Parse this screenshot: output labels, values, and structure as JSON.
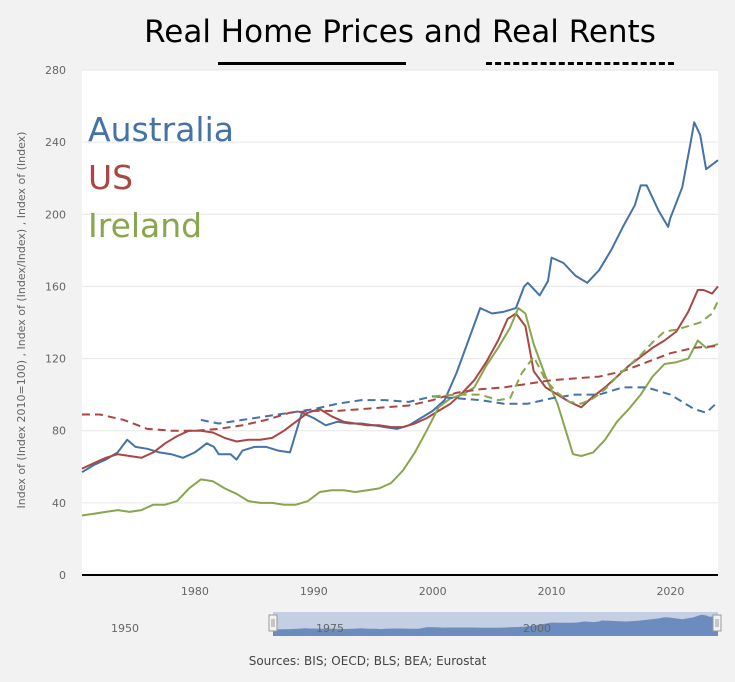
{
  "chart_data": {
    "type": "line",
    "title": "Real Home Prices and Real Rents",
    "legend": {
      "style": "line-samples-under-title",
      "solid_meaning": "Home Prices",
      "dashed_meaning": "Rents"
    },
    "ylabel": "Index of (Index 2010=100) , Index of (Index/Index) , Index of (Index)",
    "xlabel": "",
    "xlim": [
      1970.5,
      2024
    ],
    "ylim": [
      0,
      280
    ],
    "y_ticks": [
      0,
      40,
      80,
      120,
      160,
      200,
      240,
      280
    ],
    "x_ticks": [
      1980,
      1990,
      2000,
      2010,
      2020
    ],
    "grid": true,
    "country_labels": [
      {
        "name": "Australia",
        "color": "#4572a7"
      },
      {
        "name": "US",
        "color": "#aa4643"
      },
      {
        "name": "Ireland",
        "color": "#89a54e"
      }
    ],
    "series": [
      {
        "name": "Australia",
        "kind": "home prices",
        "color": "#4572a7",
        "dashed": false,
        "x": [
          1970.5,
          1971.5,
          1972.5,
          1973.5,
          1974.3,
          1975,
          1976,
          1977,
          1978,
          1979,
          1980,
          1981,
          1981.6,
          1982,
          1983,
          1983.5,
          1984,
          1985,
          1986,
          1987,
          1988,
          1989,
          1990,
          1991,
          1992,
          1993,
          1994,
          1995,
          1996,
          1997,
          1998,
          1999,
          2000,
          2001,
          2002,
          2003,
          2004,
          2005,
          2006,
          2007,
          2007.7,
          2008,
          2009,
          2009.7,
          2010,
          2011,
          2012,
          2013,
          2014,
          2015,
          2016,
          2017,
          2017.5,
          2018,
          2019,
          2019.8,
          2020,
          2021,
          2021.7,
          2022,
          2022.5,
          2023,
          2024
        ],
        "y": [
          57,
          61,
          64,
          68,
          75,
          71,
          70,
          68,
          67,
          65,
          68,
          73,
          71,
          67,
          67,
          64,
          69,
          71,
          71,
          69,
          68,
          90,
          87,
          83,
          85,
          84,
          84,
          83,
          82,
          81,
          83,
          87,
          91,
          97,
          112,
          130,
          148,
          145,
          146,
          148,
          160,
          162,
          155,
          163,
          176,
          173,
          166,
          162,
          169,
          180,
          193,
          205,
          216,
          216,
          202,
          193,
          198,
          215,
          240,
          251,
          244,
          225,
          230
        ]
      },
      {
        "name": "US",
        "kind": "home prices",
        "color": "#aa4643",
        "dashed": false,
        "x": [
          1970.5,
          1971.5,
          1972.5,
          1973.5,
          1974.5,
          1975.5,
          1976.5,
          1977.5,
          1978.5,
          1979.5,
          1980.5,
          1981.5,
          1982.5,
          1983.5,
          1984.5,
          1985.5,
          1986.5,
          1987.5,
          1988.5,
          1989.5,
          1990.5,
          1991.5,
          1992.5,
          1993.5,
          1994.5,
          1995.5,
          1996.5,
          1997.5,
          1998.5,
          1999.5,
          2000.5,
          2001.5,
          2002.5,
          2003.5,
          2004.5,
          2005.5,
          2006.3,
          2007,
          2007.8,
          2008.5,
          2009.5,
          2010.5,
          2011.5,
          2012.5,
          2013.5,
          2014.5,
          2015.5,
          2016.5,
          2017.5,
          2018.5,
          2019.5,
          2020.5,
          2021.5,
          2022.3,
          2022.8,
          2023.5,
          2024
        ],
        "y": [
          59,
          62,
          65,
          67,
          66,
          65,
          68,
          73,
          77,
          80,
          80,
          79,
          76,
          74,
          75,
          75,
          76,
          80,
          85,
          90,
          92,
          88,
          85,
          84,
          83,
          83,
          82,
          82,
          84,
          87,
          91,
          95,
          101,
          108,
          118,
          130,
          142,
          145,
          138,
          113,
          104,
          100,
          96,
          93,
          99,
          104,
          110,
          116,
          121,
          126,
          130,
          135,
          146,
          158,
          158,
          156,
          160
        ]
      },
      {
        "name": "Ireland",
        "kind": "home prices",
        "color": "#89a54e",
        "dashed": false,
        "x": [
          1970.5,
          1971.5,
          1972.5,
          1973.5,
          1974.5,
          1975.5,
          1976.5,
          1977.5,
          1978.5,
          1979.5,
          1980.5,
          1981.5,
          1982.5,
          1983.5,
          1984.5,
          1985.5,
          1986.5,
          1987.5,
          1988.5,
          1989.5,
          1990.5,
          1991.5,
          1992.5,
          1993.5,
          1994.5,
          1995.5,
          1996.5,
          1997.5,
          1998.5,
          1999.5,
          2000.5,
          2001.5,
          2002.5,
          2003.5,
          2004.5,
          2005.5,
          2006.5,
          2007.2,
          2007.8,
          2008.5,
          2009.5,
          2010.5,
          2011.2,
          2011.8,
          2012.5,
          2013.5,
          2014.5,
          2015.5,
          2016.5,
          2017.5,
          2018.5,
          2019.5,
          2020.5,
          2021.5,
          2022.3,
          2023,
          2024
        ],
        "y": [
          33,
          34,
          35,
          36,
          35,
          36,
          39,
          39,
          41,
          48,
          53,
          52,
          48,
          45,
          41,
          40,
          40,
          39,
          39,
          41,
          46,
          47,
          47,
          46,
          47,
          48,
          51,
          58,
          68,
          80,
          93,
          98,
          100,
          104,
          116,
          126,
          137,
          148,
          145,
          128,
          110,
          95,
          80,
          67,
          66,
          68,
          75,
          85,
          92,
          100,
          110,
          117,
          118,
          120,
          130,
          126,
          128
        ]
      },
      {
        "name": "Australia",
        "kind": "rents",
        "color": "#4572a7",
        "dashed": true,
        "x": [
          1980.5,
          1982,
          1984,
          1986,
          1988,
          1990,
          1992,
          1994,
          1996,
          1998,
          2000,
          2002,
          2004,
          2006,
          2008,
          2010,
          2012,
          2014,
          2016,
          2018,
          2020,
          2022,
          2023,
          2024
        ],
        "y": [
          86,
          84,
          86,
          88,
          90,
          92,
          95,
          97,
          97,
          96,
          99,
          98,
          97,
          95,
          95,
          98,
          100,
          100,
          104,
          104,
          100,
          92,
          90,
          96
        ]
      },
      {
        "name": "US",
        "kind": "rents",
        "color": "#aa4643",
        "dashed": true,
        "x": [
          1970.5,
          1972,
          1974,
          1976,
          1978,
          1980,
          1982,
          1984,
          1986,
          1988,
          1990,
          1992,
          1994,
          1996,
          1998,
          2000,
          2002,
          2004,
          2006,
          2008,
          2010,
          2012,
          2014,
          2016,
          2018,
          2020,
          2022,
          2024
        ],
        "y": [
          89,
          89,
          86,
          81,
          80,
          80,
          81,
          83,
          86,
          90,
          91,
          91,
          92,
          93,
          94,
          97,
          101,
          103,
          104,
          106,
          108,
          109,
          110,
          113,
          118,
          123,
          126,
          127
        ]
      },
      {
        "name": "Ireland",
        "kind": "rents",
        "color": "#89a54e",
        "dashed": true,
        "x": [
          2000,
          2002,
          2004,
          2005.5,
          2006.5,
          2007.5,
          2008.5,
          2009.5,
          2010.5,
          2011.5,
          2012.5,
          2013.5,
          2014.5,
          2015.5,
          2016.5,
          2017.5,
          2018.5,
          2019.5,
          2020.5,
          2021.5,
          2022.5,
          2023.5,
          2024
        ],
        "y": [
          99,
          100,
          100,
          97,
          98,
          112,
          121,
          108,
          101,
          96,
          95,
          98,
          103,
          110,
          116,
          122,
          129,
          135,
          136,
          138,
          140,
          145,
          152
        ]
      }
    ]
  },
  "navigator": {
    "tick_labels": [
      "1950",
      "1975",
      "2000"
    ],
    "range_start_year": 1970.5,
    "range_end_year": 2024
  },
  "source": "Sources: BIS; OECD; BLS; BEA; Eurostat"
}
